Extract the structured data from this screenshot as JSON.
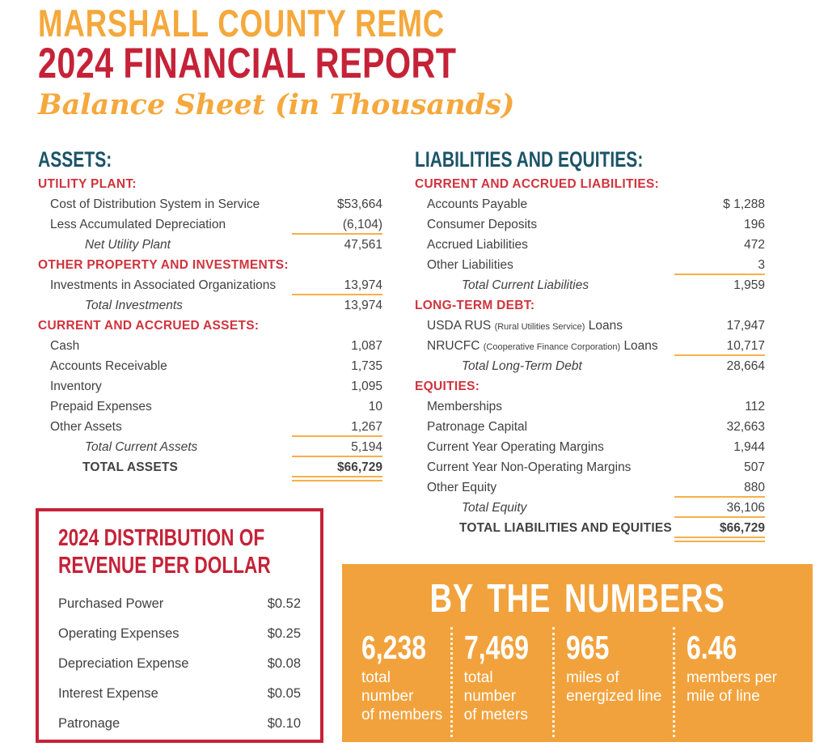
{
  "header": {
    "company": "MARSHALL COUNTY REMC",
    "title": "2024 FINANCIAL REPORT",
    "subtitle": "Balance Sheet (in Thousands)"
  },
  "colors": {
    "accent_orange": "#F5A83C",
    "brand_red": "#C52238",
    "heading_teal": "#1C5468",
    "rule_gold": "#F7B049",
    "body_text": "#414042"
  },
  "assets": {
    "title": "ASSETS:",
    "sections": [
      {
        "heading": "UTILITY PLANT:",
        "rows": [
          {
            "label": "Cost of Distribution System in Service",
            "value": "$53,664"
          },
          {
            "label": "Less Accumulated Depreciation",
            "value": "(6,104)"
          },
          {
            "label": "Net Utility Plant",
            "value": "47,561"
          }
        ]
      },
      {
        "heading": "OTHER PROPERTY AND INVESTMENTS:",
        "rows": [
          {
            "label": "Investments in Associated Organizations",
            "value": "13,974"
          },
          {
            "label": "Total Investments",
            "value": "13,974"
          }
        ]
      },
      {
        "heading": "CURRENT AND ACCRUED ASSETS:",
        "rows": [
          {
            "label": "Cash",
            "value": "1,087"
          },
          {
            "label": "Accounts Receivable",
            "value": "1,735"
          },
          {
            "label": "Inventory",
            "value": "1,095"
          },
          {
            "label": "Prepaid Expenses",
            "value": "10"
          },
          {
            "label": "Other Assets",
            "value": "1,267"
          },
          {
            "label": "Total Current Assets",
            "value": "5,194"
          },
          {
            "label": "TOTAL ASSETS",
            "value": "$66,729"
          }
        ]
      }
    ]
  },
  "liabilities": {
    "title": "LIABILITIES AND EQUITIES:",
    "sections": [
      {
        "heading": "CURRENT AND ACCRUED LIABILITIES:",
        "rows": [
          {
            "label": "Accounts Payable",
            "value": "$ 1,288"
          },
          {
            "label": "Consumer Deposits",
            "value": "196"
          },
          {
            "label": "Accrued Liabilities",
            "value": "472"
          },
          {
            "label": "Other Liabilities",
            "value": "3"
          },
          {
            "label": "Total Current Liabilities",
            "value": "1,959"
          }
        ]
      },
      {
        "heading": "LONG-TERM DEBT:",
        "rows": [
          {
            "label_main": "USDA RUS",
            "label_note": "(Rural Utilities Service)",
            "label_suffix": "Loans",
            "value": "17,947"
          },
          {
            "label_main": "NRUCFC",
            "label_note": "(Cooperative Finance Corporation)",
            "label_suffix": "Loans",
            "value": "10,717"
          },
          {
            "label": "Total Long-Term Debt",
            "value": "28,664"
          }
        ]
      },
      {
        "heading": "EQUITIES:",
        "rows": [
          {
            "label": "Memberships",
            "value": "112"
          },
          {
            "label": "Patronage Capital",
            "value": "32,663"
          },
          {
            "label": "Current Year Operating Margins",
            "value": "1,944"
          },
          {
            "label": "Current Year Non-Operating Margins",
            "value": "507"
          },
          {
            "label": "Other Equity",
            "value": "880"
          },
          {
            "label": "Total Equity",
            "value": "36,106"
          },
          {
            "label": "TOTAL LIABILITIES AND EQUITIES",
            "value": "$66,729"
          }
        ]
      }
    ]
  },
  "revenue_box": {
    "title_line1": "2024 DISTRIBUTION OF",
    "title_line2": "REVENUE PER DOLLAR",
    "rows": [
      {
        "label": "Purchased Power",
        "value": "$0.52"
      },
      {
        "label": "Operating Expenses",
        "value": "$0.25"
      },
      {
        "label": "Depreciation Expense",
        "value": "$0.08"
      },
      {
        "label": "Interest Expense",
        "value": "$0.05"
      },
      {
        "label": "Patronage",
        "value": "$0.10"
      }
    ]
  },
  "numbers_box": {
    "title": "BY THE NUMBERS",
    "stats": [
      {
        "value": "6,238",
        "caption_line1": "total number",
        "caption_line2": "of members"
      },
      {
        "value": "7,469",
        "caption_line1": "total number",
        "caption_line2": "of meters"
      },
      {
        "value": "965",
        "caption_line1": "miles of",
        "caption_line2": "energized line"
      },
      {
        "value": "6.46",
        "caption_line1": "members per",
        "caption_line2": "mile of line"
      }
    ]
  }
}
